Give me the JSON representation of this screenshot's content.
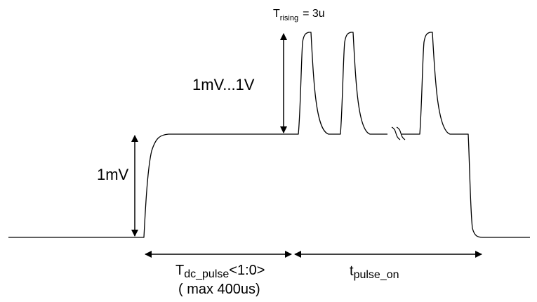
{
  "labels": {
    "rising_main": "T",
    "rising_sub": "rising",
    "rising_value": "= 3u",
    "amplitude_pulse": "1mV...1V",
    "amplitude_dc": "1mV",
    "tdc_main": "T",
    "tdc_sub": "dc_pulse",
    "tdc_range": "<1:0>",
    "tdc_max": "( max 400us)",
    "tpulse_main": "t",
    "tpulse_sub": "pulse_on"
  }
}
